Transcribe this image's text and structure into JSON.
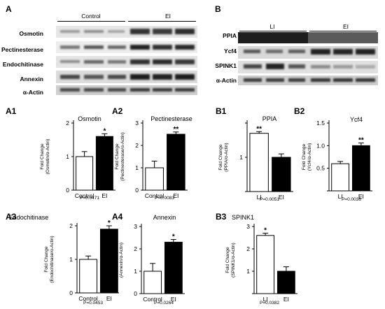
{
  "figure": {
    "panels": {
      "A": "A",
      "B": "B"
    },
    "blotA": {
      "groups": [
        "Control",
        "EI"
      ],
      "rows": [
        "Osmotin",
        "Pectinesterase",
        "Endochitinase",
        "Annexin",
        "α-Actin"
      ]
    },
    "blotB": {
      "groups": [
        "LI",
        "EI"
      ],
      "rows": [
        "PPIA",
        "Ycf4",
        "SPINK1",
        "α-Actin"
      ]
    }
  },
  "chart_data": [
    {
      "type": "bar",
      "panel": "A1",
      "title": "Osmotin",
      "categories": [
        "Control",
        "EI"
      ],
      "values": [
        1.0,
        1.6
      ],
      "errors": [
        0.15,
        0.08
      ],
      "ylim": [
        0,
        2
      ],
      "yticks": [
        "0",
        "1",
        "2"
      ],
      "ylabel": "Fold Change (Osmotin/α-Actin)",
      "significance": "*",
      "pvalue": "P=0.0471"
    },
    {
      "type": "bar",
      "panel": "A2",
      "title": "Pectinesterase",
      "categories": [
        "Control",
        "EI"
      ],
      "values": [
        1.0,
        2.5
      ],
      "errors": [
        0.3,
        0.1
      ],
      "ylim": [
        0,
        3
      ],
      "yticks": [
        "0",
        "1",
        "2",
        "3"
      ],
      "ylabel": "Fold Change (Pectinesterase/α-Actin)",
      "significance": "**",
      "pvalue": "P=0.0083"
    },
    {
      "type": "bar",
      "panel": "B1",
      "title": "PPIA",
      "categories": [
        "LI",
        "EI"
      ],
      "values": [
        1.7,
        1.0
      ],
      "errors": [
        0.05,
        0.1
      ],
      "ylim": [
        0,
        2
      ],
      "yticks": [
        "",
        "1",
        ""
      ],
      "ylabel": "Fold Change (PPIA/α-Actin)",
      "significance": "**",
      "pvalue": "P=0.0051"
    },
    {
      "type": "bar",
      "panel": "B2",
      "title": "Ycf4",
      "categories": [
        "LI",
        "EI"
      ],
      "values": [
        0.6,
        1.0
      ],
      "errors": [
        0.05,
        0.06
      ],
      "ylim": [
        0,
        1.5
      ],
      "yticks": [
        "",
        "0.5",
        "1.0",
        "1.5"
      ],
      "ylabel": "Fold Change (Ycf4/α-Actin)",
      "significance": "**",
      "pvalue": "P=0.0036"
    },
    {
      "type": "bar",
      "panel": "A3",
      "title": "Endochitinase",
      "categories": [
        "Control",
        "EI"
      ],
      "values": [
        1.0,
        1.9
      ],
      "errors": [
        0.1,
        0.1
      ],
      "ylim": [
        0,
        2
      ],
      "yticks": [
        "0",
        "1",
        "2"
      ],
      "ylabel": "Fold Change (Endochitinase/α-Actin)",
      "significance": "*",
      "pvalue": "P=0.0453"
    },
    {
      "type": "bar",
      "panel": "A4",
      "title": "Annexin",
      "categories": [
        "Control",
        "EI"
      ],
      "values": [
        1.0,
        2.3
      ],
      "errors": [
        0.35,
        0.12
      ],
      "ylim": [
        0,
        3
      ],
      "yticks": [
        "0",
        "1",
        "2",
        "3"
      ],
      "ylabel": "Fold Change (Annexin/α-Actin)",
      "significance": "*",
      "pvalue": "P=0.0264"
    },
    {
      "type": "bar",
      "panel": "B3",
      "title": "SPINK1",
      "categories": [
        "LI",
        "EI"
      ],
      "values": [
        2.6,
        1.0
      ],
      "errors": [
        0.1,
        0.2
      ],
      "ylim": [
        0,
        3
      ],
      "yticks": [
        "",
        "1",
        "2",
        "3"
      ],
      "ylabel": "Fold Change (SPINK1/α-Actin)",
      "significance": "*",
      "pvalue": "P=0.0382"
    }
  ]
}
